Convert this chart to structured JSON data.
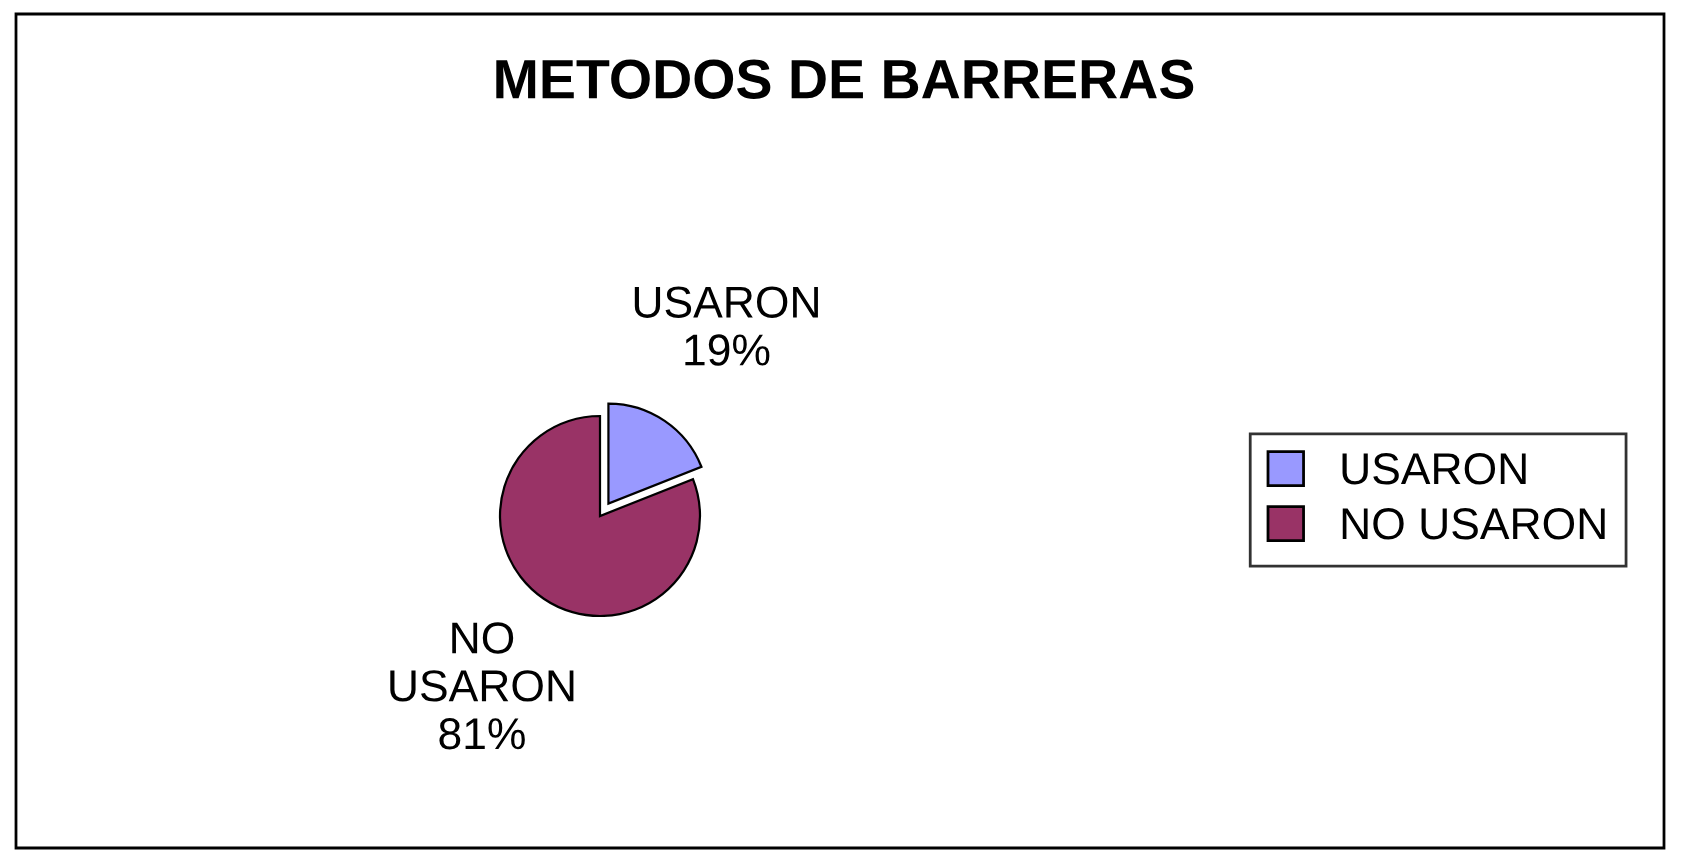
{
  "chart_data": {
    "type": "pie",
    "title": "METODOS DE BARRERAS",
    "categories": [
      "USARON",
      "NO USARON"
    ],
    "values": [
      19,
      81
    ],
    "value_labels": [
      "19%",
      "81%"
    ],
    "colors": [
      "#9999ff",
      "#993366"
    ],
    "legend": "right"
  }
}
